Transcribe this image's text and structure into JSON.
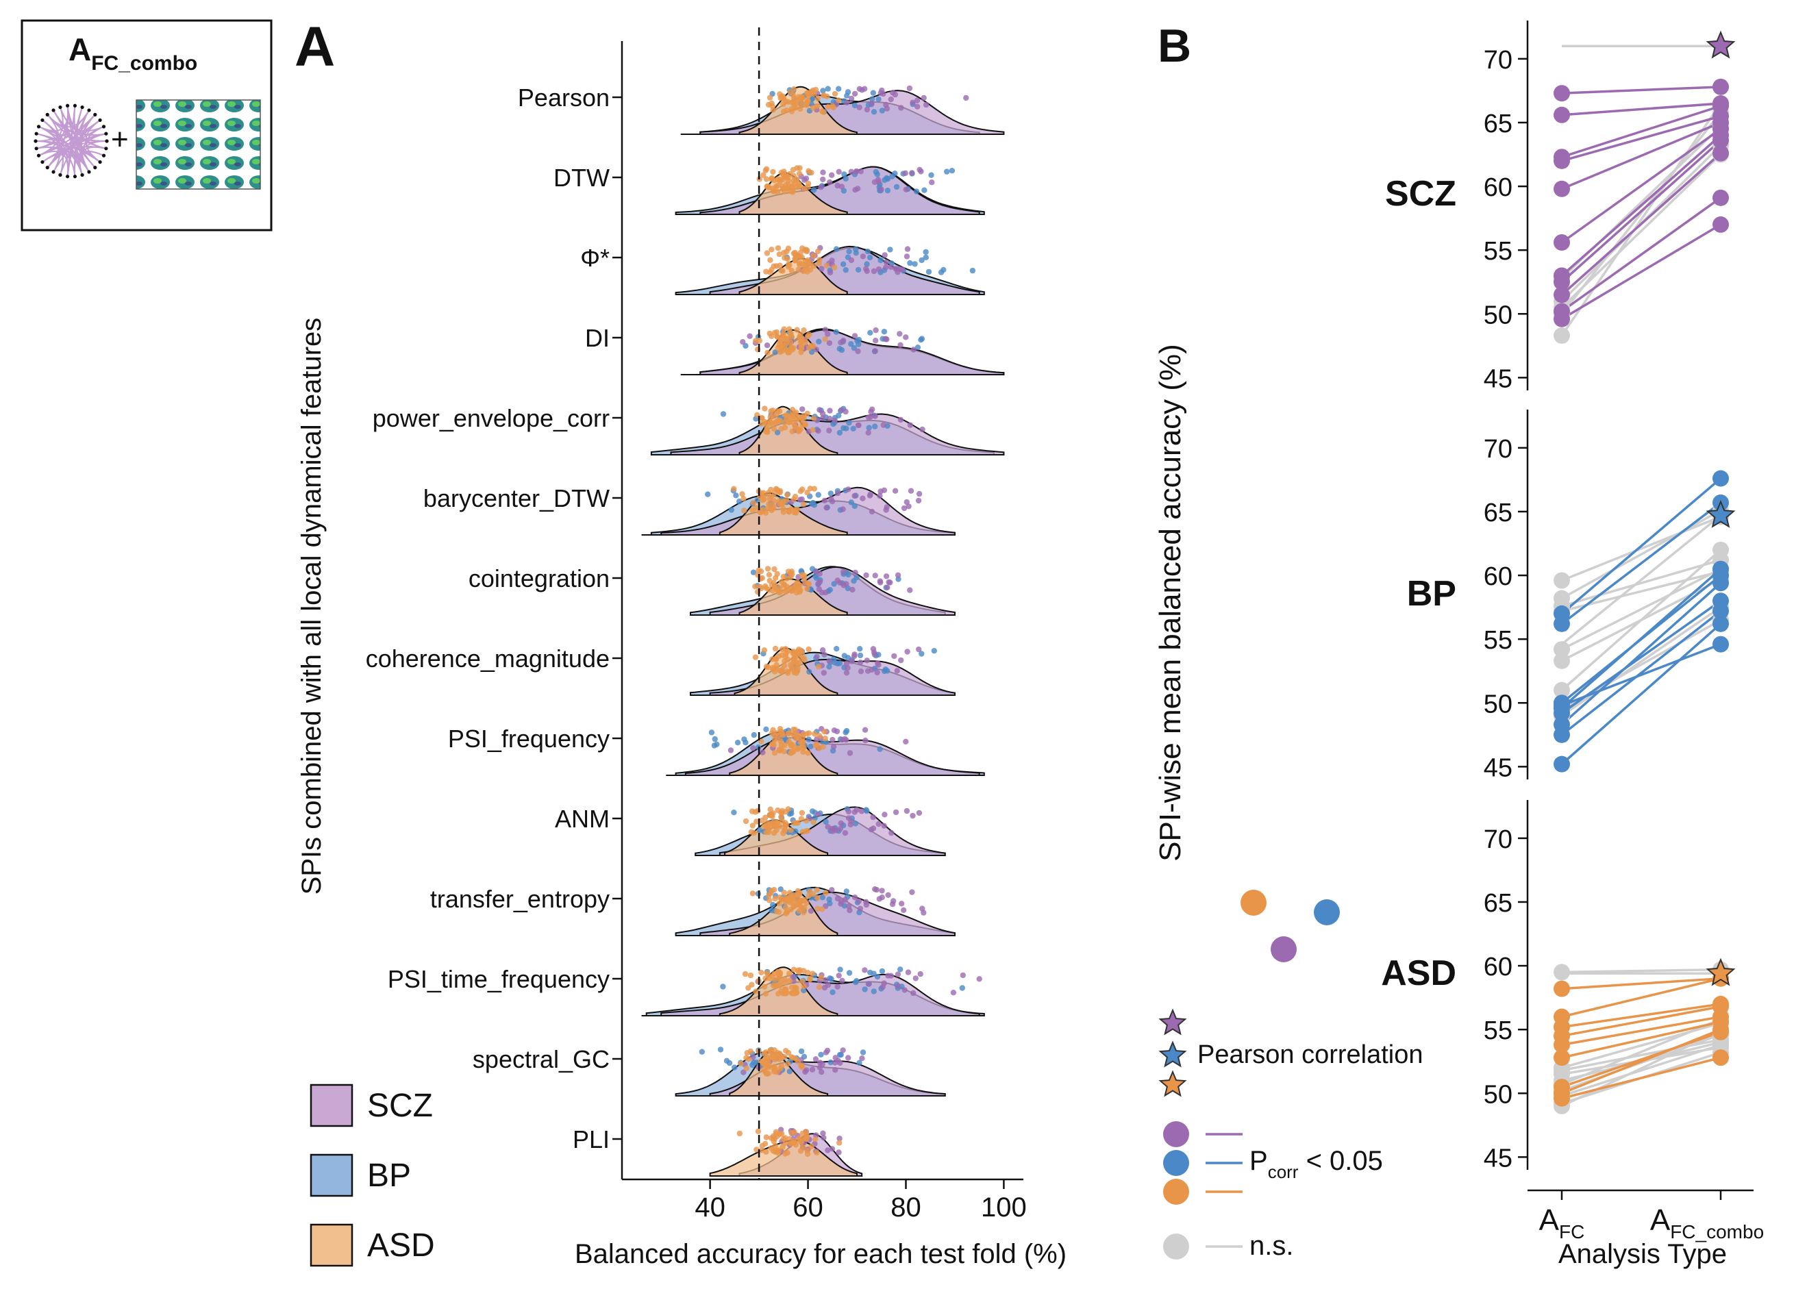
{
  "panel_a_label": "A",
  "panel_b_label": "B",
  "inset": {
    "title_main": "A",
    "title_sub": "FC_combo",
    "plus": "+"
  },
  "colors": {
    "SCZ": "#9b6ab0",
    "BP": "#4a88c7",
    "ASD": "#e8954a",
    "ns": "#cfcfcf",
    "SCZ_fill": "#c9a9d4",
    "BP_fill": "#93b6de",
    "ASD_fill": "#f1bf8e"
  },
  "legend_a": [
    {
      "group": "SCZ",
      "label": "SCZ"
    },
    {
      "group": "BP",
      "label": "BP"
    },
    {
      "group": "ASD",
      "label": "ASD"
    }
  ],
  "legend_b": {
    "star_label": "Pearson correlation",
    "sig_label_main": "P",
    "sig_label_sub": "corr",
    "sig_label_rest": " < 0.05",
    "ns_label": "n.s."
  },
  "chart_data": [
    {
      "type": "raincloud",
      "xlabel": "Balanced accuracy for each test fold (%)",
      "ylabel": "SPIs combined with all local dynamical features",
      "xlim": [
        22,
        104
      ],
      "xticks": [
        40,
        60,
        80,
        100
      ],
      "reference_line": 50,
      "categories": [
        "Pearson",
        "DTW",
        "Φ*",
        "DI",
        "power_envelope_corr",
        "barycenter_DTW",
        "cointegration",
        "coherence_magnitude",
        "PSI_frequency",
        "ANM",
        "transfer_entropy",
        "PSI_time_frequency",
        "spectral_GC",
        "PLI"
      ],
      "series": [
        {
          "name": "SCZ",
          "mode": [
            75,
            72,
            70,
            67,
            69,
            69,
            67,
            71,
            62,
            70,
            70,
            72,
            60,
            60
          ],
          "range": [
            [
              38,
              100
            ],
            [
              38,
              95
            ],
            [
              40,
              95
            ],
            [
              38,
              100
            ],
            [
              32,
              100
            ],
            [
              30,
              90
            ],
            [
              40,
              90
            ],
            [
              40,
              90
            ],
            [
              35,
              95
            ],
            [
              42,
              88
            ],
            [
              38,
              90
            ],
            [
              30,
              95
            ],
            [
              40,
              88
            ],
            [
              46,
              71
            ]
          ]
        },
        {
          "name": "BP",
          "mode": [
            67,
            72,
            73,
            66,
            64,
            57,
            65,
            66,
            58,
            60,
            60,
            66,
            54,
            0
          ],
          "range": [
            [
              38,
              95
            ],
            [
              33,
              96
            ],
            [
              33,
              96
            ],
            [
              38,
              100
            ],
            [
              28,
              98
            ],
            [
              28,
              90
            ],
            [
              36,
              88
            ],
            [
              36,
              90
            ],
            [
              33,
              96
            ],
            [
              37,
              88
            ],
            [
              33,
              90
            ],
            [
              27,
              96
            ],
            [
              33,
              88
            ],
            [
              0,
              0
            ]
          ]
        },
        {
          "name": "ASD",
          "mode": [
            59,
            56,
            58,
            56,
            55,
            53,
            55,
            55,
            57,
            54,
            57,
            55,
            53,
            56
          ],
          "range": [
            [
              46,
              70
            ],
            [
              46,
              68
            ],
            [
              46,
              68
            ],
            [
              46,
              68
            ],
            [
              46,
              66
            ],
            [
              42,
              68
            ],
            [
              46,
              68
            ],
            [
              45,
              66
            ],
            [
              44,
              66
            ],
            [
              43,
              64
            ],
            [
              44,
              66
            ],
            [
              42,
              66
            ],
            [
              44,
              64
            ],
            [
              40,
              70
            ]
          ]
        }
      ]
    },
    {
      "type": "paired_scatter",
      "xlabel": "Analysis Type",
      "ylabel": "SPI-wise mean balanced accuracy (%)",
      "x_categories": [
        "A_FC",
        "A_FC_combo"
      ],
      "x_tick_main": [
        "A",
        "A"
      ],
      "x_tick_sub": [
        "FC",
        "FC_combo"
      ],
      "ylim": [
        44,
        73
      ],
      "yticks": [
        45,
        50,
        55,
        60,
        65,
        70
      ],
      "panels": [
        {
          "name": "SCZ",
          "star": [
            71.0,
            71.0
          ],
          "significant": [
            [
              67.3,
              67.8
            ],
            [
              65.6,
              66.5
            ],
            [
              62.3,
              66.3
            ],
            [
              62.0,
              65.5
            ],
            [
              59.8,
              65.0
            ],
            [
              55.6,
              64.5
            ],
            [
              53.0,
              64.0
            ],
            [
              52.5,
              63.6
            ],
            [
              51.5,
              62.6
            ],
            [
              50.2,
              59.1
            ],
            [
              49.6,
              57.0
            ]
          ],
          "ns": [
            [
              52.8,
              64.7
            ],
            [
              51.0,
              63.2
            ],
            [
              50.5,
              62.5
            ],
            [
              48.3,
              66.5
            ],
            [
              50.0,
              65.8
            ]
          ]
        },
        {
          "name": "BP",
          "star": [
            54.6,
            64.7
          ],
          "significant": [
            [
              57.0,
              67.6
            ],
            [
              56.2,
              65.7
            ],
            [
              50.0,
              60.0
            ],
            [
              49.6,
              60.5
            ],
            [
              48.3,
              59.4
            ],
            [
              49.2,
              58.0
            ],
            [
              47.5,
              57.2
            ],
            [
              45.2,
              56.2
            ],
            [
              49.8,
              54.6
            ]
          ],
          "ns": [
            [
              59.6,
              64.6
            ],
            [
              58.2,
              65.1
            ],
            [
              57.6,
              61.2
            ],
            [
              57.2,
              60.3
            ],
            [
              54.2,
              60.5
            ],
            [
              53.3,
              59.7
            ],
            [
              51.0,
              62.0
            ],
            [
              49.0,
              57.5
            ],
            [
              49.5,
              56.5
            ]
          ]
        },
        {
          "name": "ASD",
          "star": [
            59.4,
            59.4
          ],
          "significant": [
            [
              58.2,
              59.0
            ],
            [
              56.0,
              59.0
            ],
            [
              55.2,
              57.0
            ],
            [
              54.5,
              56.8
            ],
            [
              53.8,
              56.0
            ],
            [
              52.8,
              55.6
            ],
            [
              50.5,
              54.8
            ],
            [
              49.6,
              52.8
            ],
            [
              50.0,
              55.0
            ]
          ],
          "ns": [
            [
              59.5,
              59.7
            ],
            [
              52.0,
              55.5
            ],
            [
              51.8,
              54.2
            ],
            [
              51.5,
              53.6
            ],
            [
              51.0,
              54.0
            ],
            [
              50.7,
              55.8
            ],
            [
              50.2,
              54.6
            ],
            [
              49.8,
              53.8
            ],
            [
              49.2,
              53.2
            ],
            [
              49.0,
              54.9
            ]
          ]
        }
      ]
    }
  ]
}
